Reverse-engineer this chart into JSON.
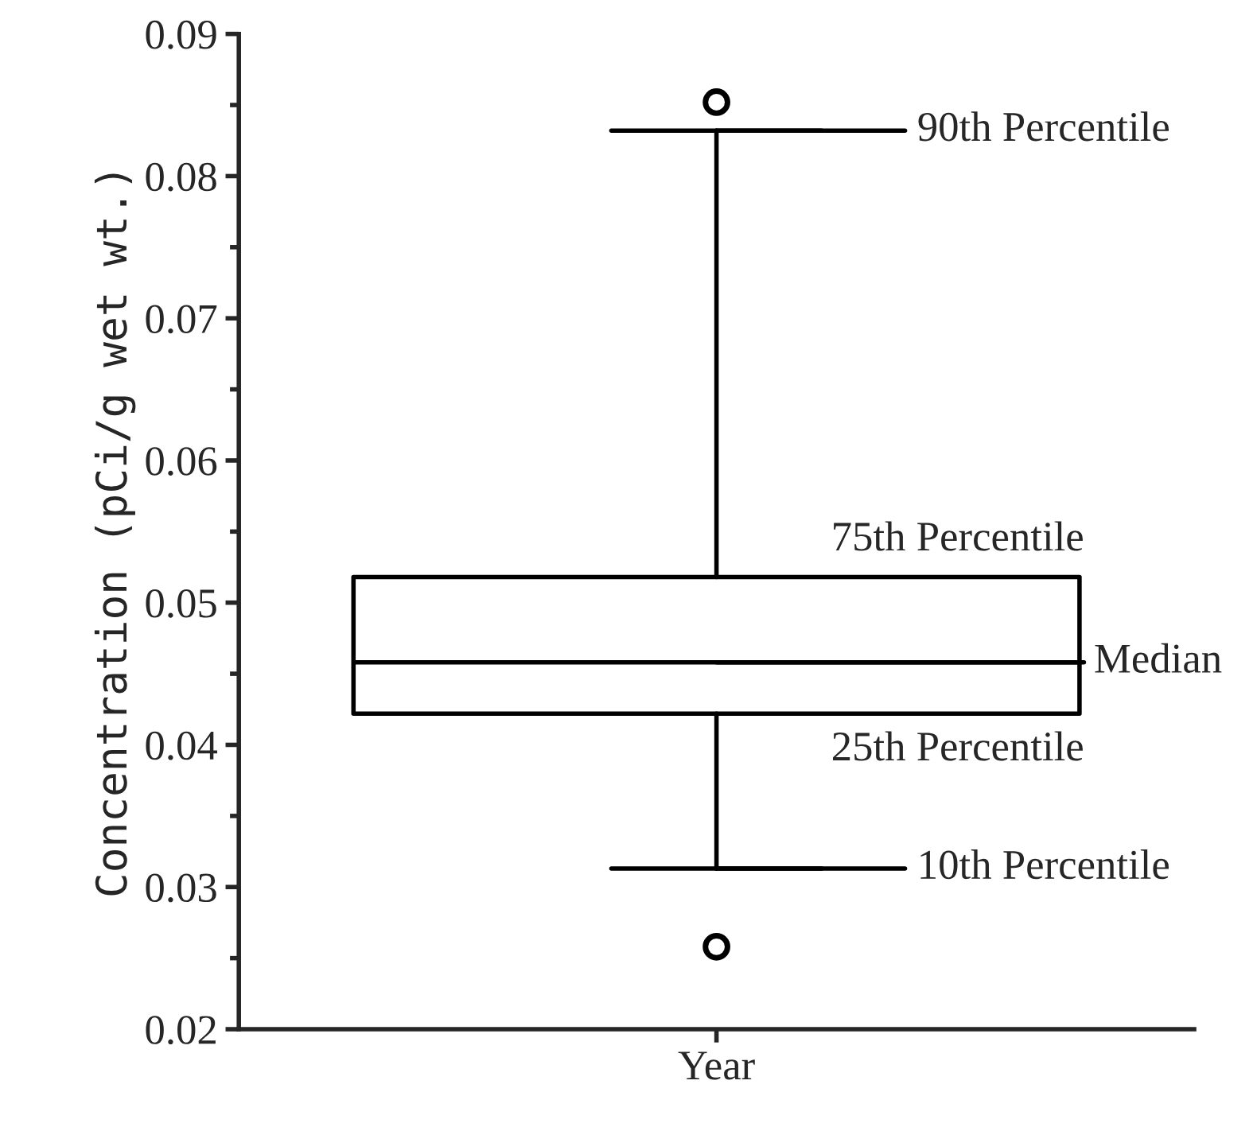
{
  "chart_data": {
    "type": "box",
    "ylabel": "Concentration (pCi/g wet wt.)",
    "categories": [
      "Year"
    ],
    "boxes": [
      {
        "low": 0.0313,
        "q1": 0.0422,
        "median": 0.0458,
        "q3": 0.0518,
        "high": 0.0832,
        "outliers": [
          0.0852,
          0.0258
        ]
      }
    ],
    "ylim": [
      0.02,
      0.09
    ],
    "yticks": [
      0.02,
      0.03,
      0.04,
      0.05,
      0.06,
      0.07,
      0.08,
      0.09
    ],
    "grid": false,
    "annotations": [
      "90th Percentile",
      "75th Percentile",
      "Median",
      "25th Percentile",
      "10th Percentile"
    ]
  }
}
